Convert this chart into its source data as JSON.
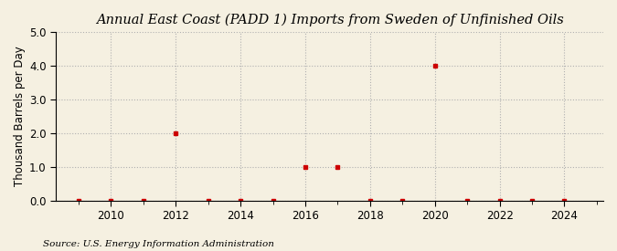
{
  "title": "Annual East Coast (PADD 1) Imports from Sweden of Unfinished Oils",
  "ylabel": "Thousand Barrels per Day",
  "source": "Source: U.S. Energy Information Administration",
  "background_color": "#f5f0e1",
  "plot_bg_color": "#f5f0e1",
  "years": [
    2009,
    2010,
    2011,
    2012,
    2013,
    2014,
    2015,
    2016,
    2017,
    2018,
    2019,
    2020,
    2021,
    2022,
    2023,
    2024
  ],
  "values": [
    0,
    0,
    0,
    2,
    0,
    0,
    0,
    1,
    1,
    0,
    0,
    4,
    0,
    0,
    0,
    0
  ],
  "marker_color": "#cc0000",
  "marker_style": "s",
  "marker_size": 3.5,
  "xlim": [
    2008.3,
    2025.2
  ],
  "ylim": [
    0,
    5.0
  ],
  "yticks": [
    0.0,
    1.0,
    2.0,
    3.0,
    4.0,
    5.0
  ],
  "xticks": [
    2010,
    2012,
    2014,
    2016,
    2018,
    2020,
    2022,
    2024
  ],
  "grid_color": "#b0b0b0",
  "grid_linestyle": ":",
  "title_fontsize": 10.5,
  "axis_fontsize": 8.5,
  "tick_fontsize": 8.5,
  "source_fontsize": 7.5
}
